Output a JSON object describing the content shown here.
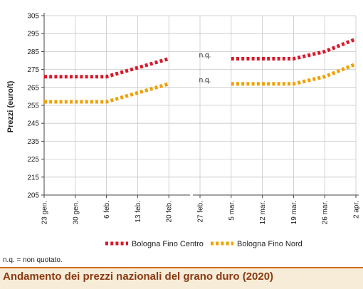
{
  "chart_data": {
    "type": "line",
    "title": "Andamento dei prezzi nazionali del grano duro (2020)",
    "ylabel": "Prezzi (euro/t)",
    "xlabel": "",
    "ylim": [
      205,
      305
    ],
    "yticks": [
      205,
      215,
      225,
      235,
      245,
      255,
      265,
      275,
      285,
      295,
      305
    ],
    "categories": [
      "23 gen.",
      "30 gen.",
      "6 feb.",
      "13 feb.",
      "20 feb.",
      "27 feb.",
      "5 mar.",
      "12 mar.",
      "19 mar.",
      "26 mar.",
      "2 apr."
    ],
    "series": [
      {
        "name": "Bologna Fino Centro",
        "color": "#d9182a",
        "values": [
          271,
          271,
          271,
          276,
          281,
          null,
          281,
          281,
          281,
          285,
          292
        ]
      },
      {
        "name": "Bologna Fino Nord",
        "color": "#f0a000",
        "values": [
          257,
          257,
          257,
          262,
          267,
          null,
          267,
          267,
          267,
          271,
          278
        ]
      }
    ],
    "annotations": [
      {
        "text": "n.q.",
        "category": "27 feb.",
        "y": 283
      },
      {
        "text": "n.q.",
        "category": "27 feb.",
        "y": 269
      }
    ],
    "axis_break": true,
    "legend_position": "bottom",
    "grid": true
  },
  "footnote": "n.q. = non quotato."
}
